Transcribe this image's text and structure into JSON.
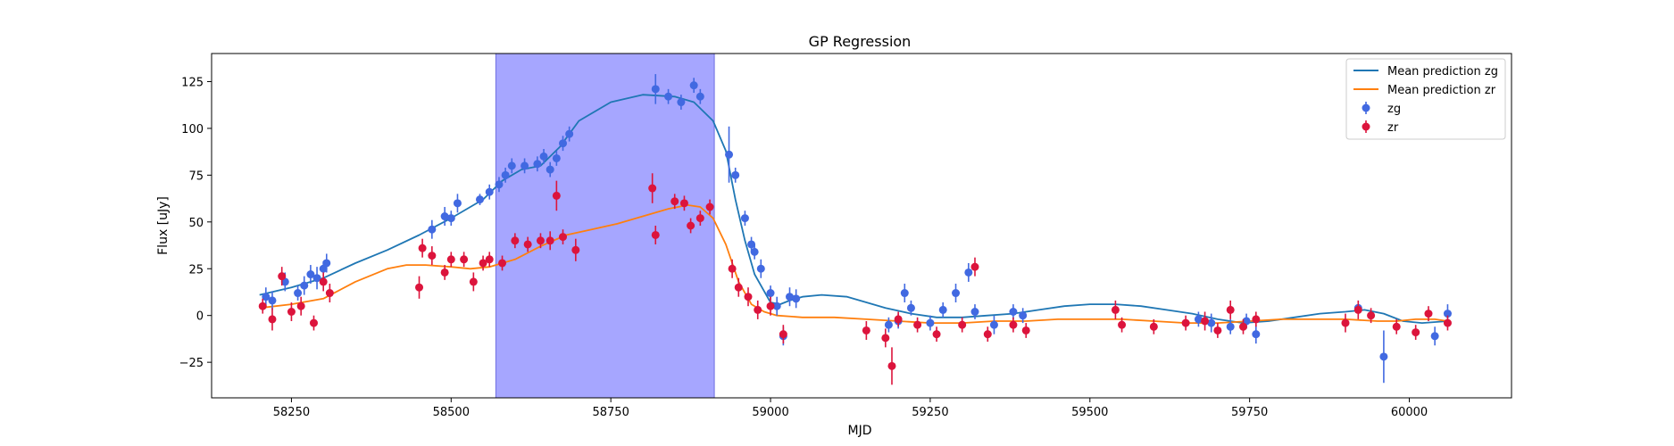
{
  "chart_data": {
    "type": "scatter",
    "title": "GP Regression",
    "xlabel": "MJD",
    "ylabel": "Flux [uJy]",
    "xlim": [
      58125,
      60160
    ],
    "ylim": [
      -44,
      140
    ],
    "x_ticks": [
      58250,
      58500,
      58750,
      59000,
      59250,
      59500,
      59750,
      60000
    ],
    "y_ticks": [
      -25,
      0,
      25,
      50,
      75,
      100,
      125
    ],
    "legend_position": "upper right",
    "grid": false,
    "highlight_region": {
      "x_start": 58570,
      "x_end": 58912,
      "color": "#a6a6ff"
    },
    "colors": {
      "zg_line": "#1f77b4",
      "zr_line": "#ff7f0e",
      "zg_points": "#4169e1",
      "zr_points": "#dc143c"
    },
    "series": [
      {
        "name": "Mean prediction zg",
        "kind": "line",
        "points": [
          [
            58200,
            11
          ],
          [
            58250,
            15
          ],
          [
            58300,
            20
          ],
          [
            58350,
            28
          ],
          [
            58400,
            35
          ],
          [
            58450,
            43
          ],
          [
            58500,
            52
          ],
          [
            58550,
            62
          ],
          [
            58580,
            72
          ],
          [
            58610,
            78
          ],
          [
            58640,
            80
          ],
          [
            58670,
            90
          ],
          [
            58700,
            104
          ],
          [
            58750,
            114
          ],
          [
            58800,
            118
          ],
          [
            58850,
            117
          ],
          [
            58880,
            114
          ],
          [
            58910,
            104
          ],
          [
            58930,
            88
          ],
          [
            58945,
            62
          ],
          [
            58960,
            40
          ],
          [
            58975,
            22
          ],
          [
            58990,
            13
          ],
          [
            59000,
            7
          ],
          [
            59015,
            6
          ],
          [
            59030,
            8
          ],
          [
            59050,
            10
          ],
          [
            59080,
            11
          ],
          [
            59120,
            10
          ],
          [
            59150,
            7
          ],
          [
            59180,
            4
          ],
          [
            59220,
            1
          ],
          [
            59260,
            -1
          ],
          [
            59300,
            -1
          ],
          [
            59340,
            0
          ],
          [
            59380,
            1
          ],
          [
            59420,
            3
          ],
          [
            59460,
            5
          ],
          [
            59500,
            6
          ],
          [
            59540,
            6
          ],
          [
            59580,
            5
          ],
          [
            59620,
            3
          ],
          [
            59660,
            1
          ],
          [
            59700,
            -2
          ],
          [
            59740,
            -4
          ],
          [
            59780,
            -3
          ],
          [
            59820,
            -1
          ],
          [
            59860,
            1
          ],
          [
            59900,
            2
          ],
          [
            59930,
            3
          ],
          [
            59960,
            1
          ],
          [
            59990,
            -3
          ],
          [
            60020,
            -4
          ],
          [
            60060,
            -3
          ]
        ]
      },
      {
        "name": "Mean prediction zr",
        "kind": "line",
        "points": [
          [
            58200,
            4
          ],
          [
            58250,
            6
          ],
          [
            58300,
            9
          ],
          [
            58350,
            18
          ],
          [
            58400,
            25
          ],
          [
            58430,
            27
          ],
          [
            58460,
            27
          ],
          [
            58500,
            26
          ],
          [
            58530,
            25
          ],
          [
            58560,
            26
          ],
          [
            58600,
            30
          ],
          [
            58640,
            37
          ],
          [
            58680,
            43
          ],
          [
            58720,
            46
          ],
          [
            58760,
            49
          ],
          [
            58800,
            53
          ],
          [
            58840,
            57
          ],
          [
            58870,
            59
          ],
          [
            58890,
            58
          ],
          [
            58910,
            52
          ],
          [
            58930,
            38
          ],
          [
            58950,
            18
          ],
          [
            58970,
            6
          ],
          [
            58990,
            2
          ],
          [
            59010,
            0
          ],
          [
            59050,
            -1
          ],
          [
            59100,
            -1
          ],
          [
            59150,
            -2
          ],
          [
            59200,
            -3
          ],
          [
            59250,
            -4
          ],
          [
            59300,
            -4
          ],
          [
            59350,
            -3
          ],
          [
            59400,
            -3
          ],
          [
            59450,
            -2
          ],
          [
            59500,
            -2
          ],
          [
            59550,
            -2
          ],
          [
            59600,
            -3
          ],
          [
            59650,
            -4
          ],
          [
            59700,
            -4
          ],
          [
            59750,
            -3
          ],
          [
            59800,
            -2
          ],
          [
            59850,
            -2
          ],
          [
            59900,
            -2
          ],
          [
            59950,
            -3
          ],
          [
            59980,
            -3
          ],
          [
            60010,
            -2
          ],
          [
            60040,
            -2
          ],
          [
            60060,
            -3
          ]
        ]
      },
      {
        "name": "zg",
        "kind": "errorbar",
        "points": [
          [
            58210,
            10,
            5
          ],
          [
            58220,
            8,
            5
          ],
          [
            58240,
            18,
            5
          ],
          [
            58260,
            12,
            4
          ],
          [
            58270,
            16,
            5
          ],
          [
            58280,
            22,
            5
          ],
          [
            58290,
            20,
            6
          ],
          [
            58300,
            25,
            4
          ],
          [
            58305,
            28,
            5
          ],
          [
            58470,
            46,
            5
          ],
          [
            58490,
            53,
            5
          ],
          [
            58500,
            52,
            4
          ],
          [
            58510,
            60,
            5
          ],
          [
            58545,
            62,
            3
          ],
          [
            58560,
            66,
            4
          ],
          [
            58575,
            70,
            4
          ],
          [
            58585,
            75,
            4
          ],
          [
            58595,
            80,
            4
          ],
          [
            58615,
            80,
            4
          ],
          [
            58635,
            81,
            4
          ],
          [
            58645,
            85,
            4
          ],
          [
            58655,
            78,
            4
          ],
          [
            58665,
            84,
            4
          ],
          [
            58675,
            92,
            4
          ],
          [
            58685,
            97,
            4
          ],
          [
            58820,
            121,
            8
          ],
          [
            58840,
            117,
            4
          ],
          [
            58860,
            114,
            4
          ],
          [
            58880,
            123,
            4
          ],
          [
            58890,
            117,
            4
          ],
          [
            58935,
            86,
            15
          ],
          [
            58945,
            75,
            4
          ],
          [
            58960,
            52,
            4
          ],
          [
            58970,
            38,
            4
          ],
          [
            58975,
            34,
            4
          ],
          [
            58985,
            25,
            5
          ],
          [
            59000,
            12,
            4
          ],
          [
            59010,
            5,
            5
          ],
          [
            59020,
            -11,
            5
          ],
          [
            59030,
            10,
            5
          ],
          [
            59040,
            9,
            5
          ],
          [
            59185,
            -5,
            4
          ],
          [
            59200,
            -3,
            4
          ],
          [
            59210,
            12,
            5
          ],
          [
            59220,
            4,
            4
          ],
          [
            59250,
            -4,
            4
          ],
          [
            59270,
            3,
            4
          ],
          [
            59290,
            12,
            5
          ],
          [
            59310,
            23,
            5
          ],
          [
            59320,
            2,
            4
          ],
          [
            59350,
            -5,
            5
          ],
          [
            59380,
            2,
            4
          ],
          [
            59395,
            0,
            4
          ],
          [
            59670,
            -2,
            4
          ],
          [
            59690,
            -4,
            5
          ],
          [
            59720,
            -6,
            4
          ],
          [
            59745,
            -3,
            4
          ],
          [
            59760,
            -10,
            5
          ],
          [
            59920,
            4,
            4
          ],
          [
            59960,
            -22,
            14
          ],
          [
            60040,
            -11,
            5
          ],
          [
            60060,
            1,
            5
          ]
        ]
      },
      {
        "name": "zr",
        "kind": "errorbar",
        "points": [
          [
            58205,
            5,
            4
          ],
          [
            58220,
            -2,
            6
          ],
          [
            58235,
            21,
            5
          ],
          [
            58250,
            2,
            5
          ],
          [
            58265,
            5,
            5
          ],
          [
            58285,
            -4,
            4
          ],
          [
            58300,
            18,
            5
          ],
          [
            58310,
            12,
            5
          ],
          [
            58450,
            15,
            6
          ],
          [
            58455,
            36,
            5
          ],
          [
            58470,
            32,
            5
          ],
          [
            58490,
            23,
            4
          ],
          [
            58500,
            30,
            4
          ],
          [
            58520,
            30,
            4
          ],
          [
            58535,
            18,
            5
          ],
          [
            58550,
            28,
            4
          ],
          [
            58560,
            30,
            4
          ],
          [
            58580,
            28,
            4
          ],
          [
            58600,
            40,
            4
          ],
          [
            58620,
            38,
            4
          ],
          [
            58640,
            40,
            4
          ],
          [
            58655,
            40,
            5
          ],
          [
            58665,
            64,
            8
          ],
          [
            58675,
            42,
            4
          ],
          [
            58695,
            35,
            6
          ],
          [
            58815,
            68,
            8
          ],
          [
            58820,
            43,
            5
          ],
          [
            58850,
            61,
            4
          ],
          [
            58865,
            60,
            4
          ],
          [
            58875,
            48,
            4
          ],
          [
            58890,
            52,
            4
          ],
          [
            58905,
            58,
            4
          ],
          [
            58940,
            25,
            5
          ],
          [
            58950,
            15,
            5
          ],
          [
            58965,
            10,
            5
          ],
          [
            58980,
            3,
            5
          ],
          [
            59000,
            5,
            5
          ],
          [
            59020,
            -10,
            5
          ],
          [
            59150,
            -8,
            5
          ],
          [
            59180,
            -12,
            5
          ],
          [
            59190,
            -27,
            10
          ],
          [
            59200,
            -2,
            4
          ],
          [
            59230,
            -5,
            4
          ],
          [
            59260,
            -10,
            4
          ],
          [
            59300,
            -5,
            4
          ],
          [
            59320,
            26,
            5
          ],
          [
            59340,
            -10,
            4
          ],
          [
            59380,
            -5,
            4
          ],
          [
            59400,
            -8,
            4
          ],
          [
            59540,
            3,
            5
          ],
          [
            59550,
            -5,
            4
          ],
          [
            59600,
            -6,
            4
          ],
          [
            59650,
            -4,
            4
          ],
          [
            59680,
            -3,
            5
          ],
          [
            59700,
            -8,
            4
          ],
          [
            59720,
            3,
            5
          ],
          [
            59740,
            -6,
            4
          ],
          [
            59760,
            -2,
            4
          ],
          [
            59900,
            -4,
            5
          ],
          [
            59920,
            3,
            5
          ],
          [
            59940,
            0,
            4
          ],
          [
            59980,
            -6,
            4
          ],
          [
            60010,
            -9,
            4
          ],
          [
            60030,
            1,
            4
          ],
          [
            60060,
            -4,
            4
          ]
        ]
      }
    ]
  }
}
